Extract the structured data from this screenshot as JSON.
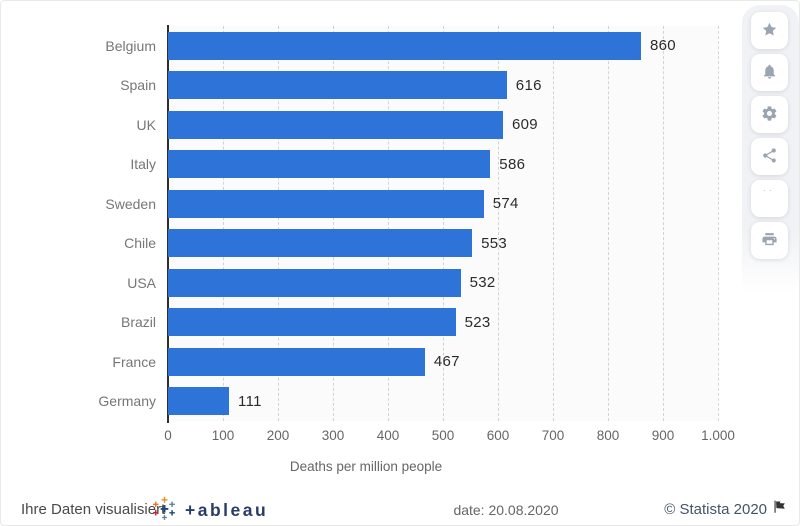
{
  "chart_data": {
    "type": "bar",
    "orientation": "horizontal",
    "title": "",
    "categories": [
      "Belgium",
      "Spain",
      "UK",
      "Italy",
      "Sweden",
      "Chile",
      "USA",
      "Brazil",
      "France",
      "Germany"
    ],
    "values": [
      860,
      616,
      609,
      586,
      574,
      553,
      532,
      523,
      467,
      111
    ],
    "value_labels": [
      "860",
      "616",
      "609",
      "586",
      "574",
      "553",
      "532",
      "523",
      "467",
      "111"
    ],
    "xlabel": "Deaths per million people",
    "ylabel": "",
    "xlim": [
      0,
      1000
    ],
    "xticks": [
      {
        "value": 0,
        "label": "0"
      },
      {
        "value": 100,
        "label": "100"
      },
      {
        "value": 200,
        "label": "200"
      },
      {
        "value": 300,
        "label": "300"
      },
      {
        "value": 400,
        "label": "400"
      },
      {
        "value": 500,
        "label": "500"
      },
      {
        "value": 600,
        "label": "600"
      },
      {
        "value": 700,
        "label": "700"
      },
      {
        "value": 800,
        "label": "800"
      },
      {
        "value": 900,
        "label": "900"
      },
      {
        "value": 1000,
        "label": "1.000"
      }
    ],
    "grid": "vertical-dashed",
    "legend": "none",
    "bar_color": "#2e73d8"
  },
  "toolbar": {
    "buttons": [
      {
        "name": "favorite",
        "icon": "star-icon"
      },
      {
        "name": "notifications",
        "icon": "bell-icon"
      },
      {
        "name": "settings",
        "icon": "gear-icon"
      },
      {
        "name": "share",
        "icon": "share-icon"
      },
      {
        "name": "cite",
        "icon": "quote-icon"
      },
      {
        "name": "print",
        "icon": "printer-icon"
      }
    ]
  },
  "footer": {
    "caption": "Ihre Daten visualisiert",
    "tableau_wordmark": "+ableau",
    "date": "date: 20.08.2020",
    "copyright": "© Statista 2020",
    "quote_glyph": "”"
  },
  "colors": {
    "bar": "#2e73d8",
    "tableau_navy": "#283d66",
    "copyright_text": "#44546a",
    "toolbar_icon": "#9aa5b2"
  }
}
